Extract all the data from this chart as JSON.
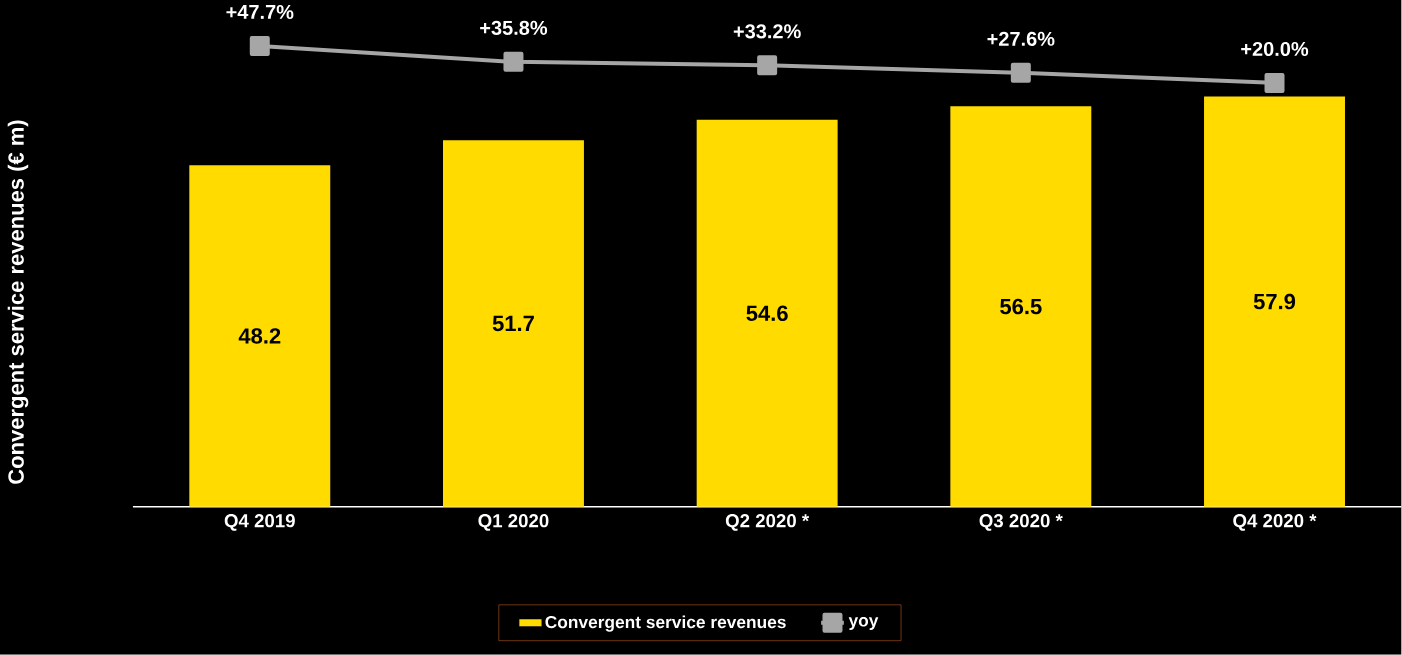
{
  "chart_data": {
    "type": "bar",
    "ylabel": "Convergent service revenues (€ m)",
    "categories": [
      "Q4 2019",
      "Q1 2020",
      "Q2 2020 *",
      "Q3 2020 *",
      "Q4 2020 *"
    ],
    "series": [
      {
        "name": "Convergent service revenues",
        "color": "#ffdb00",
        "values": [
          48.2,
          51.7,
          54.6,
          56.5,
          57.9
        ]
      },
      {
        "name": "yoy",
        "type": "line",
        "axis": "y2",
        "color": "#a6a6a6",
        "marker": "square",
        "values": [
          47.7,
          35.8,
          33.2,
          27.6,
          20.0
        ],
        "value_labels": [
          "+47.7%",
          "+35.8%",
          "+33.2%",
          "+27.6%",
          "+20.0%"
        ]
      }
    ],
    "data_labels": true,
    "ylim": [
      0,
      71.5
    ],
    "tick_labels": "x",
    "legend": "bottom"
  }
}
